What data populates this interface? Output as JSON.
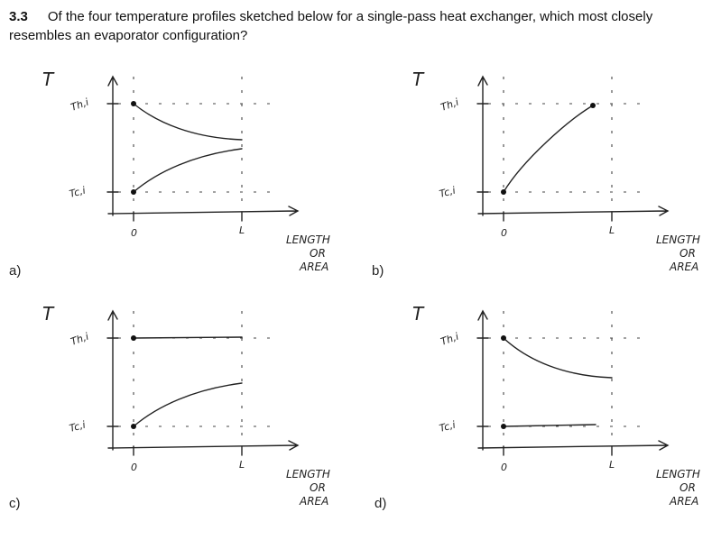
{
  "question": {
    "number": "3.3",
    "text": "Of the four temperature profiles sketched below for a single-pass heat exchanger, which most closely resembles an evaporator configuration?"
  },
  "options": [
    {
      "label": "a)"
    },
    {
      "label": "b)"
    },
    {
      "label": "c)"
    },
    {
      "label": "d)"
    }
  ],
  "sketch_labels": {
    "axis_y": "T",
    "hot": "Th,i",
    "cold": "Tc,i",
    "origin": "0",
    "end": "L",
    "x_axis": [
      "LENGTH",
      "OR",
      "AREA"
    ]
  }
}
